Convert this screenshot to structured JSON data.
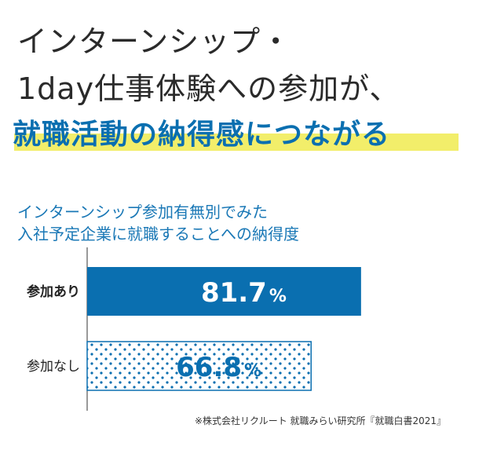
{
  "headline": {
    "line1": "インターンシップ・",
    "line2": "1day仕事体験への参加が、",
    "line3": "就職活動の納得感につながる"
  },
  "chart_data": {
    "type": "bar",
    "orientation": "horizontal",
    "title_lines": [
      "インターンシップ参加有無別でみた",
      "入社予定企業に就職することへの納得度"
    ],
    "categories": [
      "参加あり",
      "参加なし"
    ],
    "values": [
      81.7,
      66.8
    ],
    "value_labels": [
      "81.7",
      "66.8"
    ],
    "unit": "%",
    "xlim": [
      0,
      100
    ],
    "grid": false,
    "legend": "none",
    "source": "※株式会社リクルート 就職みらい研究所『就職白書2021』"
  },
  "colors": {
    "bar_primary": "#0a6fb0",
    "bar_dotted_stroke": "#0a6fb0",
    "bar_dotted_fill": "#ffffff",
    "headline_accent": "#0a6fb0",
    "highlight_band": "#f2ee6a",
    "subtitle": "#1a78b6"
  }
}
